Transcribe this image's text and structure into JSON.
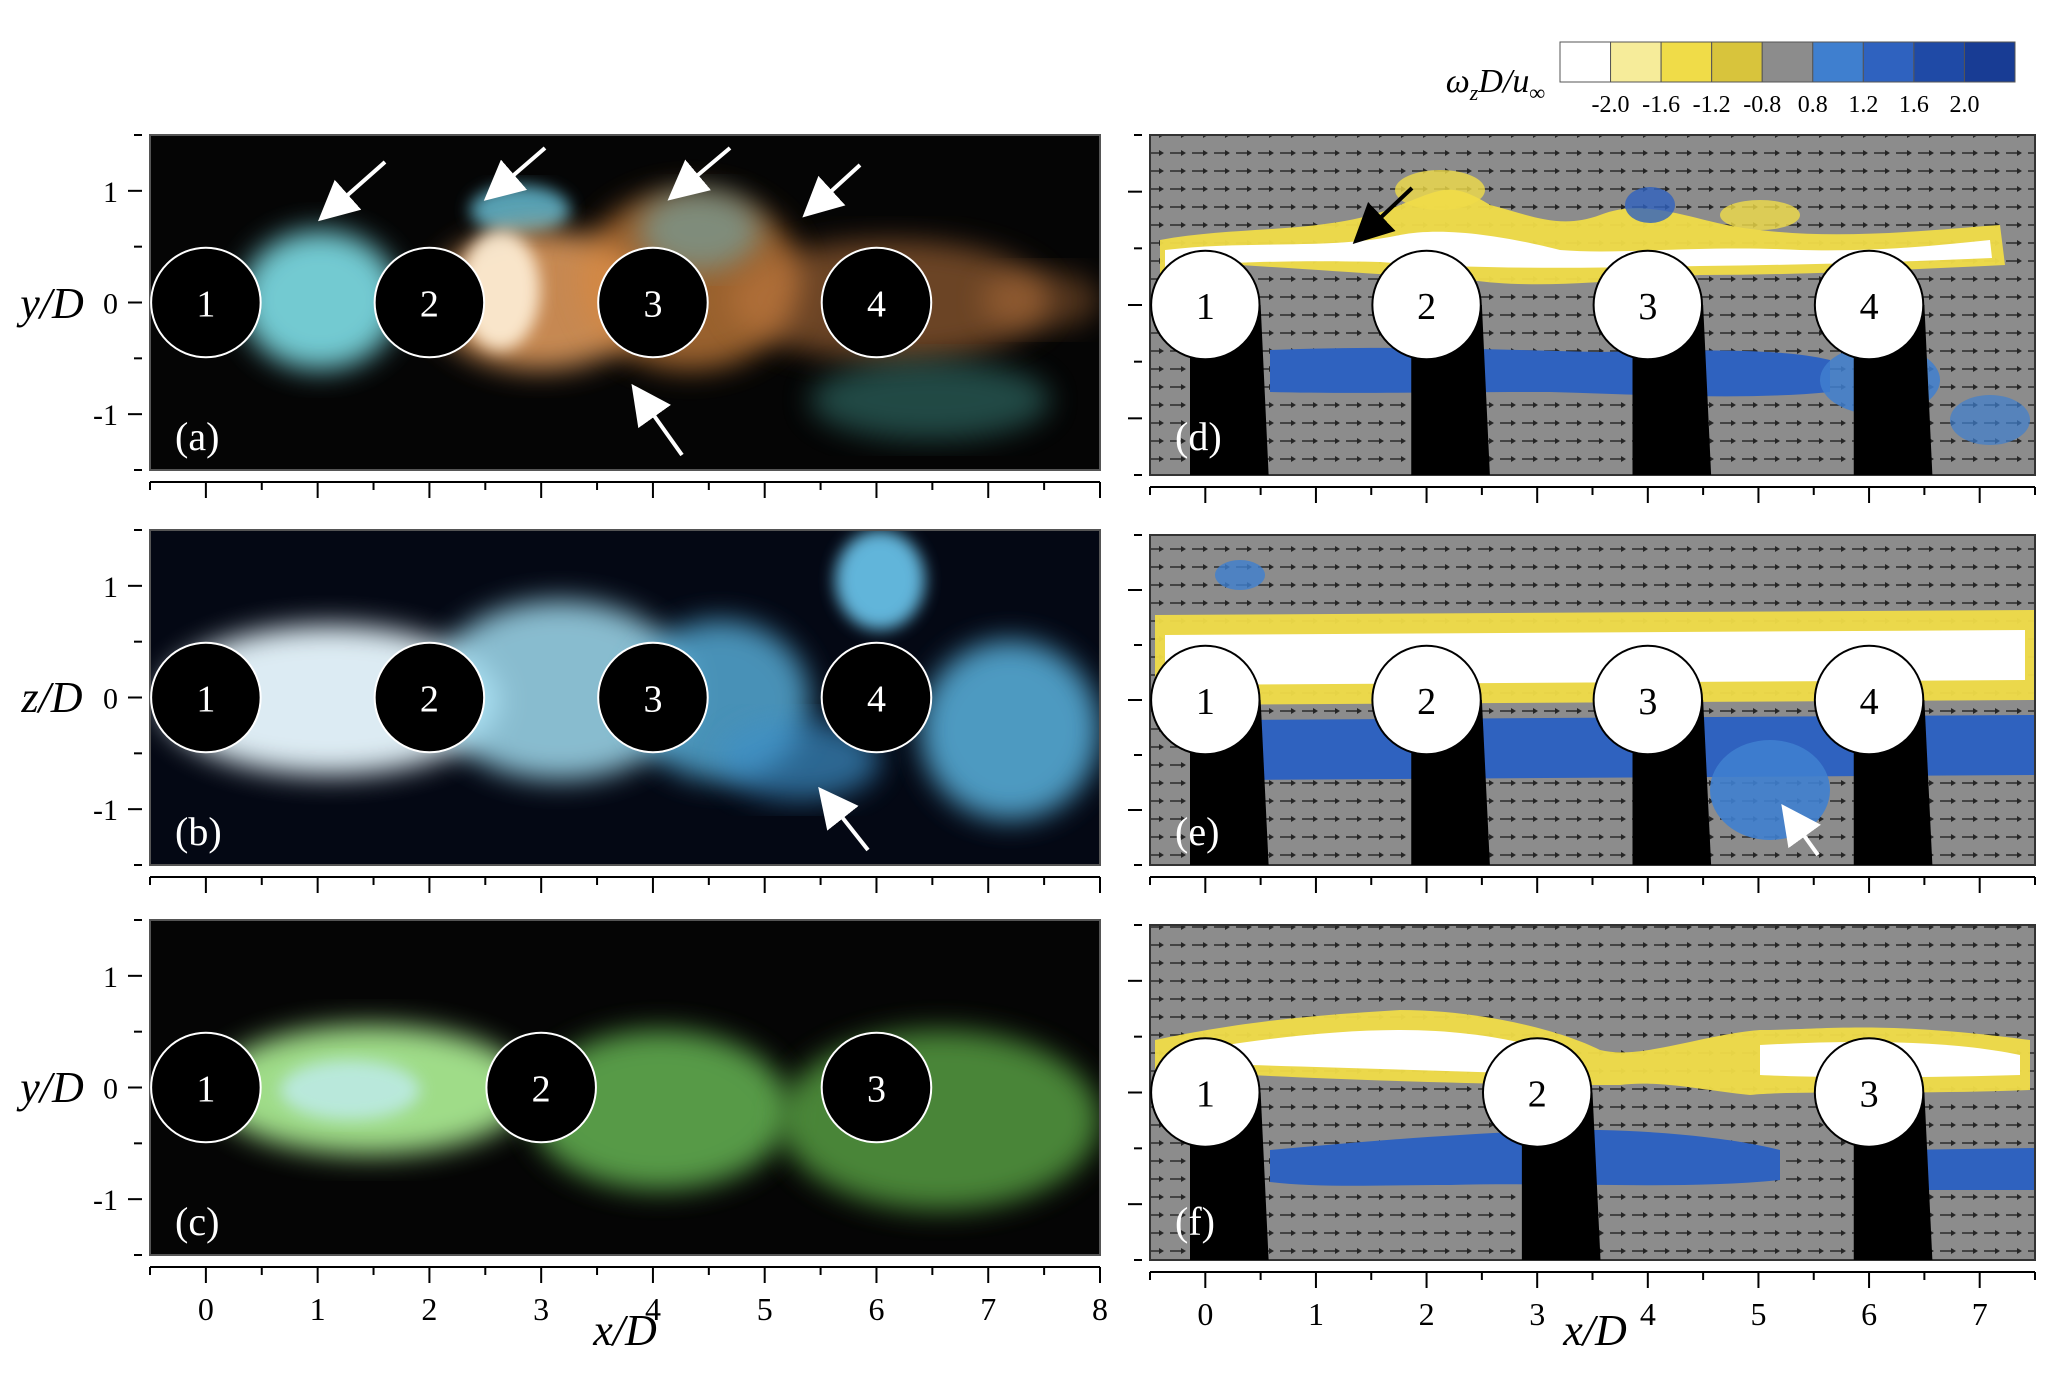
{
  "colorbar": {
    "label": "ω_z D/u_∞",
    "label_parts": {
      "omega": "ω",
      "sub": "z",
      "rest": "D/u",
      "inf": "∞"
    },
    "ticks": [
      "-2.0",
      "-1.6",
      "-1.2",
      "-0.8",
      "0.8",
      "1.2",
      "1.6",
      "2.0"
    ],
    "colors": [
      "#ffffff",
      "#f6ec9a",
      "#f0dc48",
      "#d8c43c",
      "#8c8c8c",
      "#3f7fcf",
      "#2f62bf",
      "#1f4aa6",
      "#183c94"
    ]
  },
  "axes": {
    "left_xticks": [
      "0",
      "1",
      "2",
      "3",
      "4",
      "5",
      "6",
      "7",
      "8"
    ],
    "right_xticks": [
      "0",
      "1",
      "2",
      "3",
      "4",
      "5",
      "6",
      "7"
    ],
    "yticks": [
      "1",
      "0",
      "-1"
    ],
    "xlabel": "x/D",
    "ylabel_top": "y/D",
    "ylabel_mid": "z/D",
    "ylabel_bot": "y/D"
  },
  "panels": {
    "a": {
      "label": "(a)",
      "cylinders": [
        "1",
        "2",
        "3",
        "4"
      ]
    },
    "b": {
      "label": "(b)",
      "cylinders": [
        "1",
        "2",
        "3",
        "4"
      ]
    },
    "c": {
      "label": "(c)",
      "cylinders": [
        "1",
        "2",
        "3"
      ]
    },
    "d": {
      "label": "(d)",
      "cylinders": [
        "1",
        "2",
        "3",
        "4"
      ]
    },
    "e": {
      "label": "(e)",
      "cylinders": [
        "1",
        "2",
        "3",
        "4"
      ]
    },
    "f": {
      "label": "(f)",
      "cylinders": [
        "1",
        "2",
        "3"
      ]
    }
  },
  "colors": {
    "dye_cyan": "#7fe0e8",
    "dye_blue": "#6cc8f0",
    "dye_green": "#8fe070",
    "dye_orange": "#e8a060",
    "contour_gray": "#8c8c8c",
    "contour_yellow": "#f0dc48",
    "contour_blue": "#2f62bf"
  }
}
